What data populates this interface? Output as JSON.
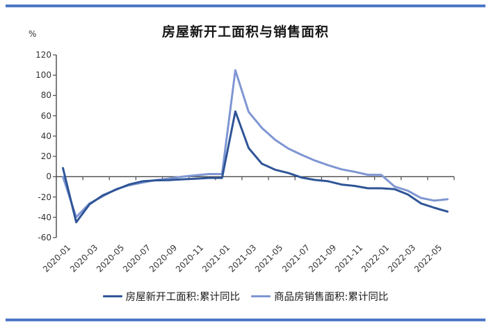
{
  "header": {
    "title": "房屋新开工面积与销售面积"
  },
  "chart_data": {
    "type": "line",
    "unit": "%",
    "title": "房屋新开工面积与销售面积",
    "xlabel": "",
    "ylabel": "%",
    "ylim": [
      -60,
      120
    ],
    "yticks": [
      120,
      100,
      80,
      60,
      40,
      20,
      0,
      -20,
      -40,
      -60
    ],
    "xtick_interval": 2,
    "grid": false,
    "legend_position": "bottom",
    "axis_color": "#4a4a4a",
    "categories": [
      "2020-01",
      "2020-02",
      "2020-03",
      "2020-04",
      "2020-05",
      "2020-06",
      "2020-07",
      "2020-08",
      "2020-09",
      "2020-10",
      "2020-11",
      "2020-12",
      "2021-01",
      "2021-02",
      "2021-03",
      "2021-04",
      "2021-05",
      "2021-06",
      "2021-07",
      "2021-08",
      "2021-09",
      "2021-10",
      "2021-11",
      "2021-12",
      "2022-01",
      "2022-02",
      "2022-03",
      "2022-04",
      "2022-05",
      "2022-06"
    ],
    "series": [
      {
        "name": "商品房销售面积:累计同比",
        "color": "#7e96d2",
        "values": [
          -0.1,
          -39.9,
          -26.3,
          -19.3,
          -12.3,
          -8.4,
          -5.8,
          -3.3,
          -1.8,
          0.0,
          1.3,
          2.6,
          2.6,
          104.9,
          63.8,
          48.1,
          36.3,
          27.7,
          21.5,
          15.9,
          11.3,
          7.3,
          4.8,
          1.9,
          1.9,
          -9.6,
          -13.8,
          -20.9,
          -23.6,
          -22.2
        ]
      },
      {
        "name": "房屋新开工面积:累计同比",
        "color": "#2f5597",
        "values": [
          8.5,
          -44.9,
          -27.2,
          -18.4,
          -12.8,
          -7.6,
          -4.5,
          -3.6,
          -3.4,
          -2.6,
          -2.0,
          -1.2,
          -1.2,
          64.3,
          28.2,
          12.8,
          6.9,
          3.6,
          -0.9,
          -3.2,
          -4.5,
          -7.7,
          -9.1,
          -11.4,
          -11.4,
          -12.2,
          -17.5,
          -26.3,
          -30.6,
          -34.4
        ]
      }
    ],
    "legend_order": [
      1,
      0
    ]
  },
  "decor": {
    "rule_color": "#4472c4"
  }
}
